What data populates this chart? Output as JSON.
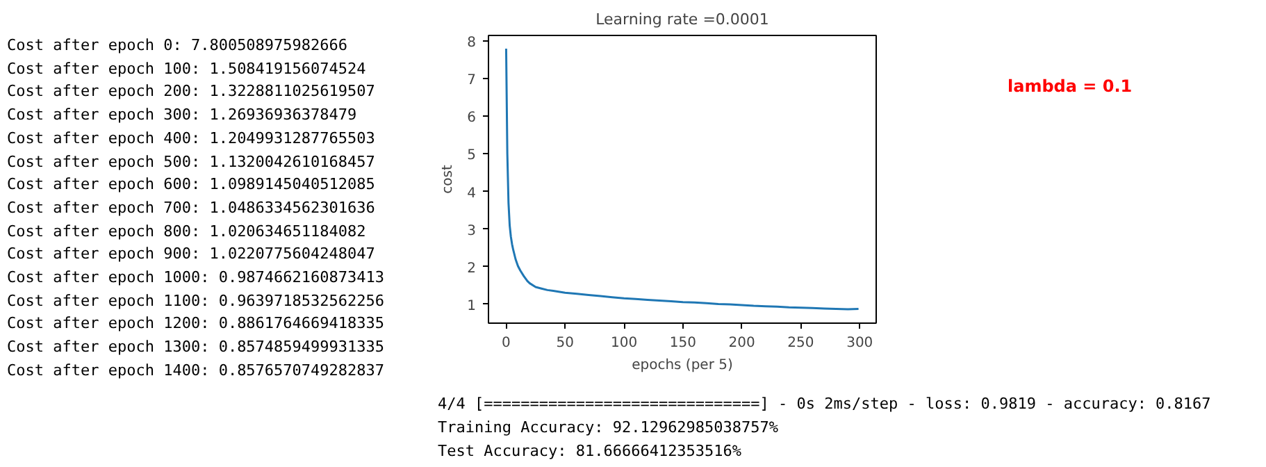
{
  "chart_data": {
    "type": "line",
    "title": "Learning rate =0.0001",
    "xlabel": "epochs (per 5)",
    "ylabel": "cost",
    "x": [
      0,
      1,
      2,
      3,
      4,
      5,
      6,
      8,
      10,
      12,
      15,
      18,
      20,
      25,
      30,
      35,
      40,
      50,
      60,
      70,
      80,
      90,
      100,
      110,
      120,
      130,
      140,
      150,
      160,
      170,
      180,
      190,
      200,
      210,
      220,
      230,
      240,
      250,
      260,
      270,
      280,
      290,
      299
    ],
    "series": [
      {
        "color": "#1f77b4",
        "values": [
          7.8,
          5.0,
          3.7,
          3.1,
          2.8,
          2.6,
          2.45,
          2.2,
          2.02,
          1.9,
          1.75,
          1.62,
          1.56,
          1.46,
          1.42,
          1.38,
          1.36,
          1.31,
          1.28,
          1.25,
          1.22,
          1.19,
          1.16,
          1.14,
          1.12,
          1.1,
          1.08,
          1.06,
          1.05,
          1.03,
          1.01,
          1.0,
          0.98,
          0.96,
          0.95,
          0.94,
          0.92,
          0.91,
          0.9,
          0.89,
          0.88,
          0.87,
          0.88
        ]
      }
    ],
    "xlim": [
      -15,
      314
    ],
    "ylim": [
      0.5,
      8.15
    ],
    "xticks": [
      0,
      50,
      100,
      150,
      200,
      250,
      300
    ],
    "yticks": [
      1,
      2,
      3,
      4,
      5,
      6,
      7,
      8
    ],
    "grid": false,
    "annotations": [
      "Cost after epoch 0: 7.800508975982666",
      "Cost after epoch 100: 1.508419156074524",
      "Cost after epoch 200: 1.3228811025619507",
      "Cost after epoch 300: 1.26936936378479",
      "Cost after epoch 400: 1.2049931287765503",
      "Cost after epoch 500: 1.1320042610168457",
      "Cost after epoch 600: 1.0989145040512085",
      "Cost after epoch 700: 1.0486334562301636",
      "Cost after epoch 800: 1.020634651184082",
      "Cost after epoch 900: 1.0220775604248047",
      "Cost after epoch 1000: 0.9874662160873413",
      "Cost after epoch 1100: 0.9639718532562256",
      "Cost after epoch 1200: 0.8861764669418335",
      "Cost after epoch 1300: 0.8574859499931335",
      "Cost after epoch 1400: 0.8576570749282837",
      "lambda = 0.1",
      "4/4 [==============================] - 0s 2ms/step - loss: 0.9819 - accuracy: 0.8167",
      "Training Accuracy: 92.12962985038757%",
      "Test Accuracy: 81.66666412353516%"
    ]
  }
}
